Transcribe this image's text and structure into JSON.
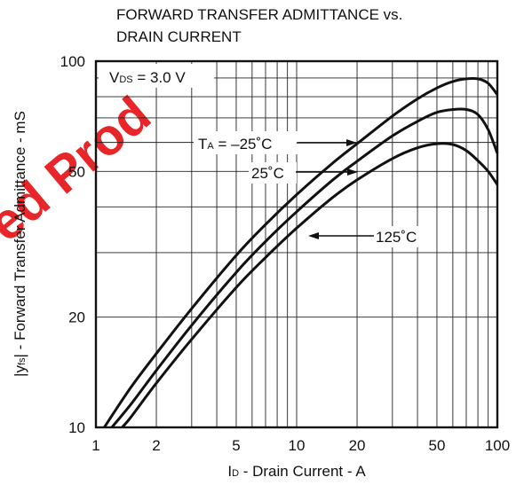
{
  "watermark": "ed Prod",
  "chart_data": {
    "type": "line",
    "title_line1": "FORWARD TRANSFER ADMITTANCE vs.",
    "title_line2": "DRAIN CURRENT",
    "xlabel": "ID - Drain Current - A",
    "ylabel": "|yfs| - Forward Transfer Admittance - mS",
    "x_scale": "log",
    "y_scale": "log",
    "xlim": [
      1,
      100
    ],
    "ylim": [
      10,
      100
    ],
    "x_ticks": [
      1,
      2,
      5,
      10,
      20,
      50,
      100
    ],
    "y_ticks": [
      10,
      20,
      50,
      100
    ],
    "grid": true,
    "condition": "VDS = 3.0 V",
    "series": [
      {
        "name": "TA = −25˚C",
        "x": [
          1.1,
          1.5,
          2,
          3,
          5,
          7,
          10,
          15,
          20,
          30,
          40,
          50,
          60,
          70,
          80,
          90,
          100
        ],
        "y": [
          10,
          12.9,
          15.9,
          21.1,
          29.5,
          35.8,
          43.2,
          52.5,
          59.5,
          70.8,
          78.9,
          84.5,
          88,
          89.5,
          89.5,
          87,
          81
        ]
      },
      {
        "name": "25˚C",
        "x": [
          1.2,
          1.5,
          2,
          3,
          5,
          7,
          10,
          15,
          20,
          30,
          40,
          50,
          60,
          70,
          80,
          90,
          100
        ],
        "y": [
          10,
          11.6,
          14.3,
          19,
          26.5,
          32.2,
          38.8,
          47.2,
          53.3,
          62.5,
          68.5,
          72.5,
          73.8,
          73.8,
          71.5,
          65,
          56
        ]
      },
      {
        "name": "125˚C",
        "x": [
          1.35,
          1.5,
          2,
          3,
          5,
          7,
          10,
          15,
          20,
          30,
          40,
          50,
          60,
          70,
          80,
          90,
          100
        ],
        "y": [
          10,
          10.7,
          13.2,
          17.4,
          24.1,
          29.1,
          35,
          42.3,
          47.4,
          54.2,
          58,
          59.5,
          59.2,
          57,
          53.5,
          50,
          46
        ]
      }
    ]
  }
}
